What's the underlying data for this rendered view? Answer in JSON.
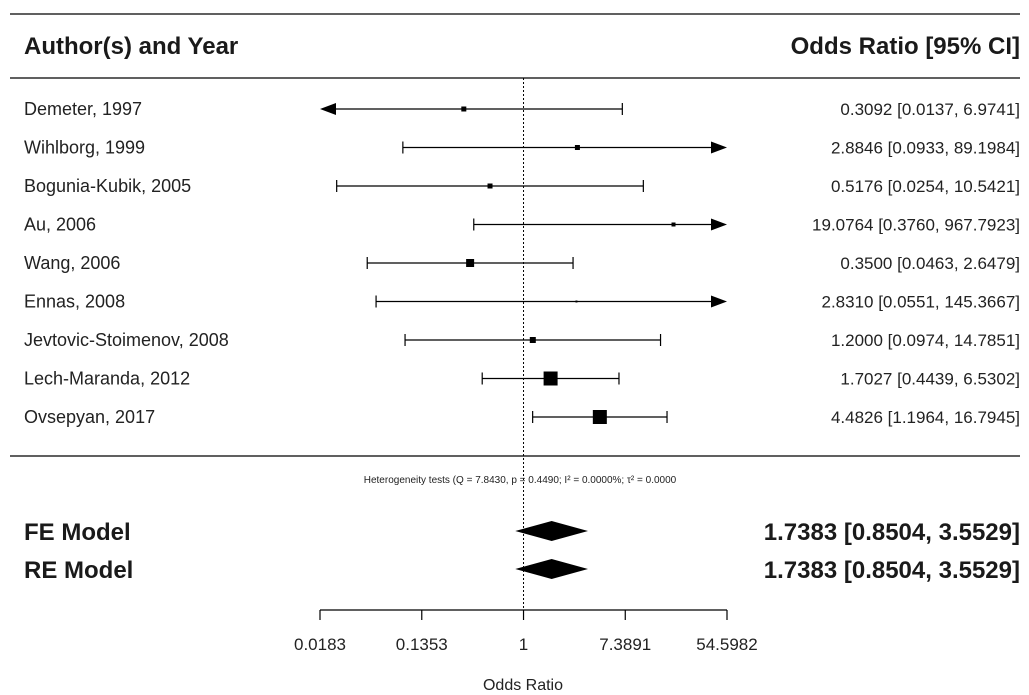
{
  "chart_data": {
    "type": "forest",
    "header": {
      "left": "Author(s) and Year",
      "right": "Odds Ratio [95% CI]"
    },
    "log_scale": true,
    "xlim": [
      0.0183,
      54.5982
    ],
    "reference_line": 1,
    "studies": [
      {
        "label": "Demeter, 1997",
        "or": 0.3092,
        "lower": 0.0137,
        "upper": 6.9741,
        "ci_text": "0.3092 [0.0137,  6.9741]",
        "clip_left": true,
        "clip_right": false,
        "box": 5
      },
      {
        "label": "Wihlborg, 1999",
        "or": 2.8846,
        "lower": 0.0933,
        "upper": 89.1984,
        "ci_text": "2.8846 [0.0933, 89.1984]",
        "clip_left": false,
        "clip_right": true,
        "box": 5
      },
      {
        "label": "Bogunia-Kubik, 2005",
        "or": 0.5176,
        "lower": 0.0254,
        "upper": 10.5421,
        "ci_text": "0.5176 [0.0254, 10.5421]",
        "clip_left": false,
        "clip_right": false,
        "box": 5
      },
      {
        "label": "Au, 2006",
        "or": 19.0764,
        "lower": 0.376,
        "upper": 967.7923,
        "ci_text": "19.0764 [0.3760, 967.7923]",
        "clip_left": false,
        "clip_right": true,
        "box": 4
      },
      {
        "label": "Wang, 2006",
        "or": 0.35,
        "lower": 0.0463,
        "upper": 2.6479,
        "ci_text": "0.3500 [0.0463,  2.6479]",
        "clip_left": false,
        "clip_right": false,
        "box": 8
      },
      {
        "label": "Ennas, 2008",
        "or": 2.831,
        "lower": 0.0551,
        "upper": 145.3667,
        "ci_text": "2.8310 [0.0551, 145.3667]",
        "clip_left": false,
        "clip_right": true,
        "box": 2
      },
      {
        "label": "Jevtovic-Stoimenov, 2008",
        "or": 1.2,
        "lower": 0.0974,
        "upper": 14.7851,
        "ci_text": "1.2000 [0.0974, 14.7851]",
        "clip_left": false,
        "clip_right": false,
        "box": 6
      },
      {
        "label": "Lech-Maranda, 2012",
        "or": 1.7027,
        "lower": 0.4439,
        "upper": 6.5302,
        "ci_text": "1.7027 [0.4439,  6.5302]",
        "clip_left": false,
        "clip_right": false,
        "box": 14
      },
      {
        "label": "Ovsepyan, 2017",
        "or": 4.4826,
        "lower": 1.1964,
        "upper": 16.7945,
        "ci_text": "4.4826 [1.1964, 16.7945]",
        "clip_left": false,
        "clip_right": false,
        "box": 14
      }
    ],
    "heterogeneity": "Heterogeneity tests (Q = 7.8430, p = 0.4490; I² = 0.0000%; τ² = 0.0000",
    "models": [
      {
        "label": "FE Model",
        "est": 1.7383,
        "lower": 0.8504,
        "upper": 3.5529,
        "ci_text": "1.7383 [0.8504, 3.5529]"
      },
      {
        "label": "RE Model",
        "est": 1.7383,
        "lower": 0.8504,
        "upper": 3.5529,
        "ci_text": "1.7383 [0.8504, 3.5529]"
      }
    ],
    "ticks": [
      0.0183,
      0.1353,
      1,
      7.3891,
      54.5982
    ],
    "tick_labels": [
      "0.0183",
      "0.1353",
      "1",
      "7.3891",
      "54.5982"
    ],
    "xlabel": "Odds Ratio",
    "colors": {
      "ink": "#000000",
      "text": "#222222"
    }
  }
}
